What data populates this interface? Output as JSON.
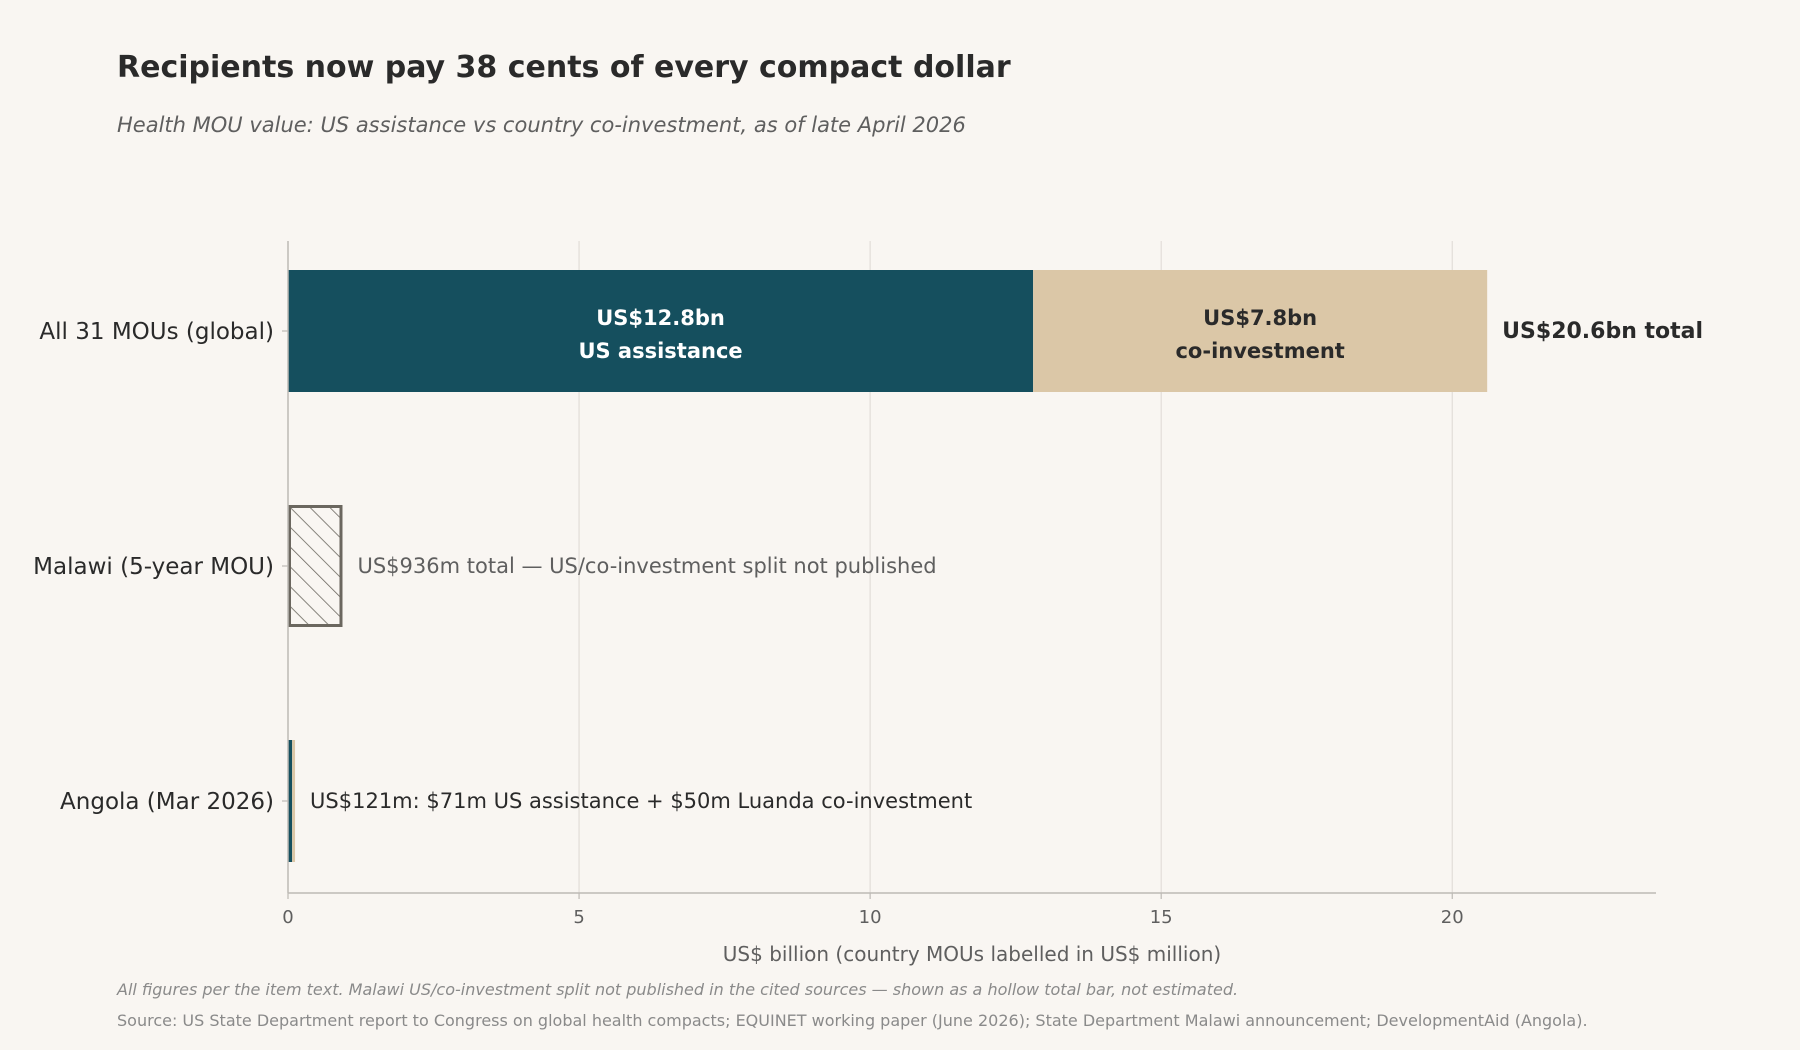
{
  "colors": {
    "background": "#f9f6f2",
    "us_assistance": "#154f5e",
    "co_investment": "#dbc7a7",
    "hollow_outline": "#6b675f",
    "grid": "#e2ddd8",
    "axis": "#bdbab5",
    "text_dark": "#2a2a2a",
    "text_muted": "#5f5f5f"
  },
  "chart_data": {
    "type": "bar",
    "orientation": "horizontal",
    "stacked": true,
    "title": "Recipients now pay 38 cents of every compact dollar",
    "subtitle": "Health MOU value: US assistance vs country co-investment, as of late April 2026",
    "xlabel": "US$ billion (country MOUs labelled in US$ million)",
    "xlim": [
      0,
      23.5
    ],
    "xticks": [
      0,
      5,
      10,
      15,
      20
    ],
    "grid": "vertical",
    "categories": [
      "All 31 MOUs (global)",
      "Malawi (5-year MOU)",
      "Angola (Mar 2026)"
    ],
    "series": [
      {
        "key": "us",
        "values": [
          12.8,
          null,
          0.071
        ]
      },
      {
        "key": "co",
        "values": [
          7.8,
          null,
          0.05
        ]
      }
    ],
    "hollow_totals": [
      null,
      0.936,
      null
    ],
    "segment_labels": [
      {
        "row": 0,
        "series": "us",
        "line1": "US$12.8bn",
        "line2": "US assistance"
      },
      {
        "row": 0,
        "series": "co",
        "line1": "US$7.8bn",
        "line2": "co-investment"
      }
    ],
    "end_labels": [
      {
        "row": 0,
        "text": "US$20.6bn total",
        "style": "bold"
      },
      {
        "row": 1,
        "text": "US$936m total — US/co-investment split not published",
        "style": "muted"
      },
      {
        "row": 2,
        "text": "US$121m: $71m US assistance + $50m Luanda co-investment",
        "style": "dark"
      }
    ]
  },
  "footnote": "All figures per the item text. Malawi US/co-investment split not published in the cited sources — shown as a hollow total bar, not estimated.",
  "source": "Source: US State Department report to Congress on global health compacts; EQUINET working paper (June 2026); State Department Malawi announcement; DevelopmentAid (Angola)."
}
